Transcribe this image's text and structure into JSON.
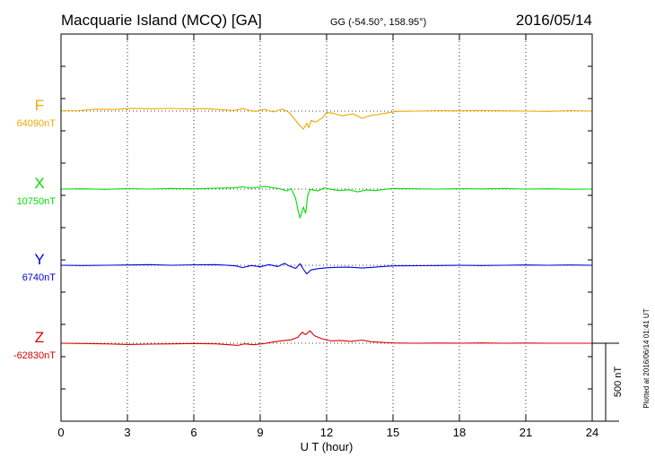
{
  "header": {
    "title": "Macquarie Island (MCQ)  [GA]",
    "coords": "GG (-54.50°, 158.95°)",
    "date": "2016/05/14"
  },
  "side_note": "Plotted at 2016/06/14 01:41 UT",
  "chart_data": {
    "type": "line",
    "title": "Macquarie Island (MCQ)  [GA]",
    "xlabel": "U T (hour)",
    "xlim": [
      0,
      24
    ],
    "x_ticks": [
      0,
      3,
      6,
      9,
      12,
      15,
      18,
      21,
      24
    ],
    "x_tick_labels": [
      "0",
      "3",
      "6",
      "9",
      "12",
      "15",
      "18",
      "21",
      "24"
    ],
    "grid": true,
    "scale_bar": {
      "label": "500 nT",
      "value": 500
    },
    "series": [
      {
        "name": "F",
        "baseline_label": "64090nT",
        "baseline": 64090,
        "color": "#f0a800",
        "points": [
          [
            0,
            2
          ],
          [
            0.8,
            3
          ],
          [
            1.5,
            12
          ],
          [
            2.5,
            11
          ],
          [
            3.2,
            18
          ],
          [
            4,
            15
          ],
          [
            5,
            17
          ],
          [
            5.8,
            14
          ],
          [
            6.5,
            16
          ],
          [
            7.2,
            10
          ],
          [
            7.8,
            4
          ],
          [
            8.2,
            16
          ],
          [
            8.5,
            6
          ],
          [
            8.8,
            -2
          ],
          [
            9.2,
            12
          ],
          [
            9.6,
            -5
          ],
          [
            10,
            14
          ],
          [
            10.3,
            -8
          ],
          [
            10.6,
            -60
          ],
          [
            10.8,
            -95
          ],
          [
            10.95,
            -115
          ],
          [
            11.1,
            -78
          ],
          [
            11.2,
            -105
          ],
          [
            11.3,
            -60
          ],
          [
            11.5,
            -70
          ],
          [
            11.8,
            -45
          ],
          [
            12,
            -8
          ],
          [
            12.3,
            -14
          ],
          [
            12.7,
            -30
          ],
          [
            13.2,
            -18
          ],
          [
            13.6,
            -46
          ],
          [
            14,
            -28
          ],
          [
            14.4,
            -20
          ],
          [
            14.8,
            -10
          ],
          [
            15.2,
            -2
          ],
          [
            16,
            0
          ],
          [
            17,
            3
          ],
          [
            18,
            2
          ],
          [
            19,
            4
          ],
          [
            20,
            2
          ],
          [
            21,
            0
          ],
          [
            22,
            -2
          ],
          [
            23,
            3
          ],
          [
            24,
            0
          ]
        ]
      },
      {
        "name": "X",
        "baseline_label": "10750nT",
        "baseline": 10750,
        "color": "#00dd00",
        "points": [
          [
            0,
            0
          ],
          [
            1,
            2
          ],
          [
            2,
            -2
          ],
          [
            3,
            3
          ],
          [
            4,
            0
          ],
          [
            5,
            4
          ],
          [
            6,
            2
          ],
          [
            7,
            5
          ],
          [
            7.8,
            8
          ],
          [
            8.2,
            14
          ],
          [
            8.6,
            6
          ],
          [
            9.2,
            18
          ],
          [
            9.6,
            8
          ],
          [
            9.9,
            2
          ],
          [
            10.2,
            -12
          ],
          [
            10.4,
            4
          ],
          [
            10.6,
            -60
          ],
          [
            10.7,
            -130
          ],
          [
            10.8,
            -185
          ],
          [
            10.95,
            -115
          ],
          [
            11.05,
            -155
          ],
          [
            11.15,
            -40
          ],
          [
            11.25,
            -2
          ],
          [
            11.6,
            -12
          ],
          [
            11.9,
            8
          ],
          [
            12.2,
            -2
          ],
          [
            12.6,
            -10
          ],
          [
            13,
            -4
          ],
          [
            13.4,
            -18
          ],
          [
            13.8,
            -6
          ],
          [
            14.2,
            -10
          ],
          [
            14.6,
            -2
          ],
          [
            15,
            4
          ],
          [
            16,
            2
          ],
          [
            17,
            0
          ],
          [
            18,
            3
          ],
          [
            19,
            1
          ],
          [
            20,
            4
          ],
          [
            21,
            0
          ],
          [
            22,
            2
          ],
          [
            23,
            -1
          ],
          [
            24,
            0
          ]
        ]
      },
      {
        "name": "Y",
        "baseline_label": "6740nT",
        "baseline": 6740,
        "color": "#0000dd",
        "points": [
          [
            0,
            0
          ],
          [
            1,
            -2
          ],
          [
            2,
            0
          ],
          [
            3,
            2
          ],
          [
            4,
            4
          ],
          [
            5,
            0
          ],
          [
            6,
            3
          ],
          [
            7,
            4
          ],
          [
            7.5,
            0
          ],
          [
            7.9,
            -4
          ],
          [
            8.2,
            -15
          ],
          [
            8.6,
            -2
          ],
          [
            9,
            -10
          ],
          [
            9.4,
            4
          ],
          [
            9.8,
            -8
          ],
          [
            10.1,
            12
          ],
          [
            10.3,
            -4
          ],
          [
            10.6,
            -20
          ],
          [
            10.8,
            10
          ],
          [
            10.95,
            -25
          ],
          [
            11.1,
            -55
          ],
          [
            11.3,
            -30
          ],
          [
            11.6,
            -22
          ],
          [
            12,
            -16
          ],
          [
            12.4,
            -13
          ],
          [
            13,
            -12
          ],
          [
            13.6,
            -18
          ],
          [
            14,
            -14
          ],
          [
            14.5,
            -8
          ],
          [
            15,
            -4
          ],
          [
            16,
            -3
          ],
          [
            17,
            -2
          ],
          [
            18,
            0
          ],
          [
            19,
            -2
          ],
          [
            20,
            0
          ],
          [
            21,
            2
          ],
          [
            22,
            0
          ],
          [
            23,
            2
          ],
          [
            24,
            0
          ]
        ]
      },
      {
        "name": "Z",
        "baseline_label": "-62830nT",
        "baseline": -62830,
        "color": "#dd0000",
        "points": [
          [
            0,
            0
          ],
          [
            1,
            -2
          ],
          [
            2,
            -4
          ],
          [
            3,
            -8
          ],
          [
            4,
            -6
          ],
          [
            5,
            -4
          ],
          [
            6,
            -2
          ],
          [
            7,
            -4
          ],
          [
            7.6,
            -10
          ],
          [
            8,
            -14
          ],
          [
            8.3,
            -4
          ],
          [
            8.7,
            -10
          ],
          [
            9.2,
            -2
          ],
          [
            9.6,
            8
          ],
          [
            10,
            16
          ],
          [
            10.4,
            22
          ],
          [
            10.7,
            38
          ],
          [
            10.9,
            70
          ],
          [
            11.05,
            55
          ],
          [
            11.25,
            80
          ],
          [
            11.45,
            48
          ],
          [
            11.8,
            28
          ],
          [
            12.2,
            15
          ],
          [
            12.6,
            18
          ],
          [
            13.1,
            12
          ],
          [
            13.6,
            20
          ],
          [
            14,
            10
          ],
          [
            14.5,
            5
          ],
          [
            15,
            2
          ],
          [
            16,
            0
          ],
          [
            17,
            1
          ],
          [
            18,
            0
          ],
          [
            19,
            2
          ],
          [
            20,
            0
          ],
          [
            21,
            1
          ],
          [
            22,
            0
          ],
          [
            23,
            0
          ],
          [
            24,
            0
          ]
        ]
      }
    ]
  }
}
